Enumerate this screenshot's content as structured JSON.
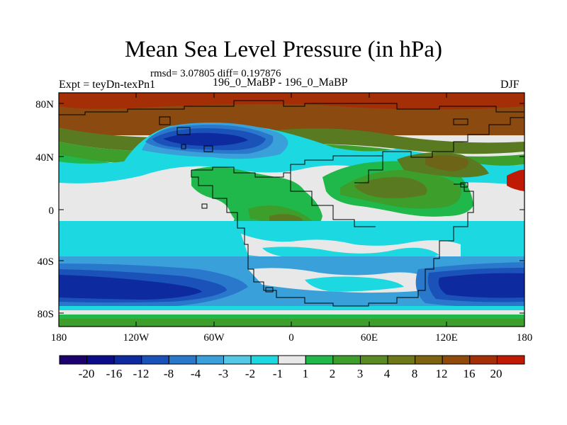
{
  "header": {
    "title": "Mean Sea Level Pressure (in hPa)",
    "stats": "rmsd= 3.07805 diff= 0.197876",
    "left_label": "Expt = teyDn-texPn1",
    "center_label": "196_0_MaBP - 196_0_MaBP",
    "right_label": "DJF"
  },
  "map": {
    "y_ticks": [
      "80N",
      "40N",
      "0",
      "40S",
      "80S"
    ],
    "x_ticks": [
      "180",
      "120W",
      "60W",
      "0",
      "60E",
      "120E",
      "180"
    ]
  },
  "colorbar": {
    "colors": [
      "#1b006e",
      "#0a0c8a",
      "#0d2a9e",
      "#1a52ba",
      "#2a78cc",
      "#3aa0da",
      "#54c8e4",
      "#1cd8e0",
      "#e8e8e8",
      "#20b84a",
      "#3d9e2c",
      "#5a8a22",
      "#6e7818",
      "#7e6310",
      "#904a0a",
      "#a42e06",
      "#c01a04"
    ],
    "labels": [
      "-20",
      "-16",
      "-12",
      "-8",
      "-4",
      "-3",
      "-2",
      "-1",
      "1",
      "2",
      "3",
      "4",
      "8",
      "12",
      "16",
      "20"
    ]
  },
  "palette": {
    "deep_blue": "#0a1e96",
    "blue": "#1a52ba",
    "mid_blue": "#2a78cc",
    "light_blue": "#3aa0da",
    "cyan": "#1cd8e0",
    "white": "#e8e8e8",
    "green": "#20b84a",
    "dark_green": "#3d9e2c",
    "olive": "#5a7a22",
    "brown_olive": "#6e6418",
    "brown": "#8a4a10",
    "red_brown": "#a42e06",
    "red": "#c01a04"
  }
}
